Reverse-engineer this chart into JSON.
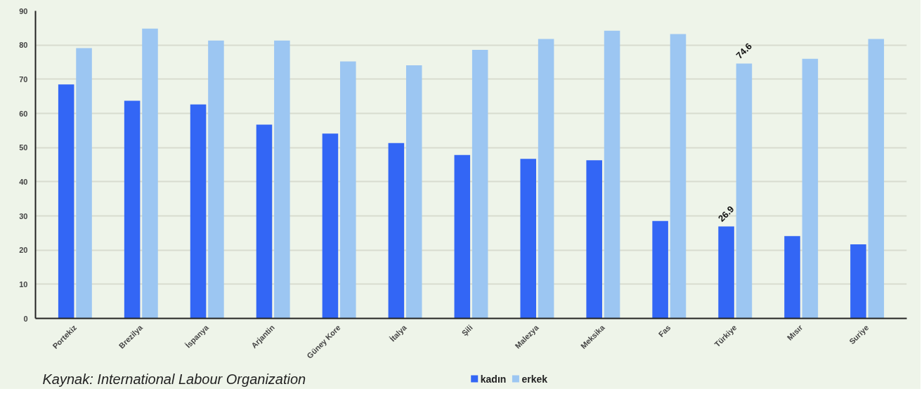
{
  "chart_data": {
    "type": "bar",
    "categories": [
      "Portekiz",
      "Brezilya",
      "İspanya",
      "Arjantin",
      "Güney Kore",
      "İtalya",
      "Şili",
      "Malezya",
      "Meksika",
      "Fas",
      "Türkiye",
      "Mısır",
      "Suriye"
    ],
    "series": [
      {
        "name": "kadın",
        "color": "#3366f5",
        "values": [
          68.5,
          63.7,
          62.6,
          56.7,
          54.1,
          51.3,
          47.8,
          46.7,
          46.3,
          28.5,
          26.9,
          24.1,
          21.7
        ],
        "value_labels": [
          null,
          null,
          null,
          null,
          null,
          null,
          null,
          null,
          null,
          null,
          "26.9",
          null,
          null
        ]
      },
      {
        "name": "erkek",
        "color": "#9cc6f2",
        "values": [
          79.1,
          84.8,
          81.3,
          81.3,
          75.2,
          74.1,
          78.6,
          81.8,
          84.2,
          83.2,
          74.6,
          76.0,
          81.8
        ],
        "value_labels": [
          null,
          null,
          null,
          null,
          null,
          null,
          null,
          null,
          null,
          null,
          "74.6",
          null,
          null
        ]
      }
    ],
    "ylim": [
      0,
      90
    ],
    "yticks": [
      0,
      10,
      20,
      30,
      40,
      50,
      60,
      70,
      80,
      90
    ],
    "grid": "y",
    "legend": "bottom",
    "annotations": [
      "Kaynak: International Labour Organization"
    ]
  }
}
